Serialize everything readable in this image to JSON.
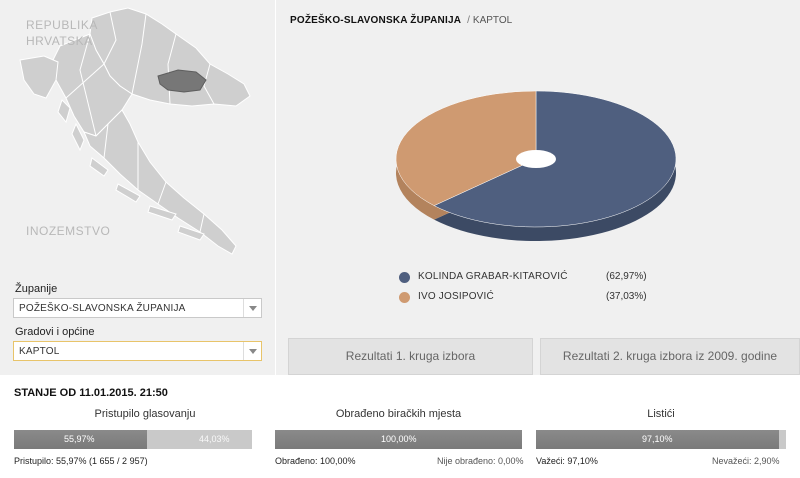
{
  "map": {
    "label_lines": [
      "REPUBLIKA",
      "HRVATSKA"
    ],
    "abroad_label": "INOZEMSTVO"
  },
  "filters": {
    "county_label": "Županije",
    "county_value": "POŽEŠKO-SLAVONSKA ŽUPANIJA",
    "city_label": "Gradovi i općine",
    "city_value": "KAPTOL"
  },
  "breadcrumb": {
    "county": "POŽEŠKO-SLAVONSKA ŽUPANIJA",
    "separator": "/",
    "municipality": "KAPTOL"
  },
  "chart_data": {
    "type": "pie",
    "categories": [
      "KOLINDA GRABAR-KITAROVIĆ",
      "IVO JOSIPOVIĆ"
    ],
    "values": [
      62.97,
      37.03
    ],
    "labels": [
      "(62,97%)",
      "(37,03%)"
    ],
    "colors": [
      "#4f5f7f",
      "#cf9a71"
    ],
    "legend_position": "bottom"
  },
  "buttons": {
    "round1": "Rezultati 1. kruga izbora",
    "round2_2009": "Rezultati 2. kruga izbora iz 2009. godine"
  },
  "status": {
    "title": "STANJE OD 11.01.2015. 21:50",
    "turnout": {
      "title": "Pristupilo glasovanju",
      "value": 55.97,
      "in_label": "55,97%",
      "rest_label": "44,03%",
      "sub": "Pristupilo: 55,97% (1 655 / 2 957)"
    },
    "processed": {
      "title": "Obrađeno biračkih mjesta",
      "value": 100,
      "in_label": "100,00%",
      "sub_left": "Obrađeno: 100,00%",
      "sub_right": "Nije obrađeno: 0,00%"
    },
    "ballots": {
      "title": "Listići",
      "value": 97.1,
      "in_label": "97,10%",
      "sub_left": "Važeći: 97,10%",
      "sub_right": "Nevažeći: 2,90%"
    }
  }
}
